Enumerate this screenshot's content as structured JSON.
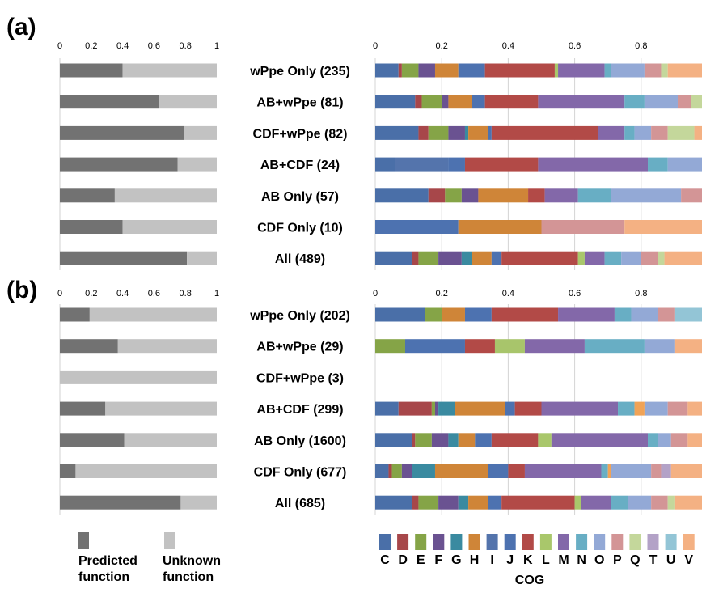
{
  "chart_data": [
    {
      "panel": "(a)",
      "left": {
        "type": "bar",
        "orientation": "horizontal",
        "stacked": true,
        "xlim": [
          0,
          1
        ],
        "ticks": [
          "0",
          "0.2",
          "0.4",
          "0.6",
          "0.8",
          "1"
        ],
        "series": [
          {
            "name": "Predicted function",
            "values": [
              0.4,
              0.63,
              0.79,
              0.75,
              0.35,
              0.4,
              0.81
            ]
          },
          {
            "name": "Unknown function",
            "values": [
              0.6,
              0.37,
              0.21,
              0.25,
              0.65,
              0.6,
              0.19
            ]
          }
        ]
      },
      "categories": [
        "wPpe Only (235)",
        "AB+wPpe (81)",
        "CDF+wPpe (82)",
        "AB+CDF (24)",
        "AB Only (57)",
        "CDF Only (10)",
        "All (489)"
      ],
      "right": {
        "type": "bar",
        "orientation": "horizontal",
        "stacked": true,
        "xlim": [
          0,
          1
        ],
        "ticks": [
          "0",
          "0.2",
          "0.4",
          "0.6",
          "0.8"
        ],
        "rows": [
          [
            [
              "C",
              0.07
            ],
            [
              "D",
              0.01
            ],
            [
              "E",
              0.05
            ],
            [
              "F",
              0.05
            ],
            [
              "H",
              0.07
            ],
            [
              "J",
              0.08
            ],
            [
              "K",
              0.21
            ],
            [
              "L",
              0.01
            ],
            [
              "M",
              0.14
            ],
            [
              "N",
              0.02
            ],
            [
              "O",
              0.1
            ],
            [
              "P",
              0.05
            ],
            [
              "Q",
              0.02
            ],
            [
              "V",
              0.12
            ]
          ],
          [
            [
              "C",
              0.12
            ],
            [
              "D",
              0.02
            ],
            [
              "E",
              0.06
            ],
            [
              "F",
              0.02
            ],
            [
              "H",
              0.07
            ],
            [
              "J",
              0.04
            ],
            [
              "K",
              0.16
            ],
            [
              "M",
              0.26
            ],
            [
              "N",
              0.06
            ],
            [
              "O",
              0.1
            ],
            [
              "P",
              0.04
            ],
            [
              "Q",
              0.05
            ]
          ],
          [
            [
              "C",
              0.13
            ],
            [
              "D",
              0.03
            ],
            [
              "E",
              0.06
            ],
            [
              "F",
              0.05
            ],
            [
              "G",
              0.01
            ],
            [
              "H",
              0.06
            ],
            [
              "J",
              0.01
            ],
            [
              "K",
              0.32
            ],
            [
              "M",
              0.08
            ],
            [
              "N",
              0.03
            ],
            [
              "O",
              0.05
            ],
            [
              "P",
              0.05
            ],
            [
              "Q",
              0.08
            ],
            [
              "V",
              0.04
            ]
          ],
          [
            [
              "C",
              0.06
            ],
            [
              "I",
              0.16
            ],
            [
              "J",
              0.05
            ],
            [
              "K",
              0.22
            ],
            [
              "M",
              0.33
            ],
            [
              "N",
              0.06
            ],
            [
              "O",
              0.12
            ]
          ],
          [
            [
              "C",
              0.16
            ],
            [
              "D",
              0.05
            ],
            [
              "E",
              0.05
            ],
            [
              "F",
              0.05
            ],
            [
              "H",
              0.15
            ],
            [
              "K",
              0.05
            ],
            [
              "M",
              0.1
            ],
            [
              "N",
              0.1
            ],
            [
              "O",
              0.21
            ],
            [
              "P",
              0.08
            ]
          ],
          [
            [
              "J",
              0.25
            ],
            [
              "H",
              0.25
            ],
            [
              "P",
              0.25
            ],
            [
              "V",
              0.25
            ]
          ],
          [
            [
              "C",
              0.11
            ],
            [
              "D",
              0.02
            ],
            [
              "E",
              0.06
            ],
            [
              "F",
              0.07
            ],
            [
              "G",
              0.03
            ],
            [
              "H",
              0.06
            ],
            [
              "J",
              0.03
            ],
            [
              "K",
              0.23
            ],
            [
              "L",
              0.02
            ],
            [
              "M",
              0.06
            ],
            [
              "N",
              0.05
            ],
            [
              "O",
              0.06
            ],
            [
              "P",
              0.05
            ],
            [
              "Q",
              0.02
            ],
            [
              "V",
              0.13
            ]
          ]
        ]
      }
    },
    {
      "panel": "(b)",
      "left": {
        "type": "bar",
        "orientation": "horizontal",
        "stacked": true,
        "xlim": [
          0,
          1
        ],
        "ticks": [
          "0",
          "0.2",
          "0.4",
          "0.6",
          "0.8",
          "1"
        ],
        "series": [
          {
            "name": "Predicted function",
            "values": [
              0.19,
              0.37,
              0.0,
              0.29,
              0.41,
              0.1,
              0.77
            ]
          },
          {
            "name": "Unknown function",
            "values": [
              0.81,
              0.63,
              1.0,
              0.71,
              0.59,
              0.9,
              0.23
            ]
          }
        ]
      },
      "categories": [
        "wPpe Only (202)",
        "AB+wPpe (29)",
        "CDF+wPpe (3)",
        "AB+CDF (299)",
        "AB Only (1600)",
        "CDF Only (677)",
        "All (685)"
      ],
      "right": {
        "type": "bar",
        "orientation": "horizontal",
        "stacked": true,
        "xlim": [
          0,
          1
        ],
        "ticks": [
          "0",
          "0.2",
          "0.4",
          "0.6",
          "0.8"
        ],
        "rows": [
          [
            [
              "C",
              0.15
            ],
            [
              "E",
              0.05
            ],
            [
              "H",
              0.07
            ],
            [
              "J",
              0.08
            ],
            [
              "K",
              0.2
            ],
            [
              "M",
              0.17
            ],
            [
              "N",
              0.05
            ],
            [
              "O",
              0.08
            ],
            [
              "P",
              0.05
            ],
            [
              "U",
              0.1
            ]
          ],
          [
            [
              "E",
              0.09
            ],
            [
              "J",
              0.18
            ],
            [
              "K",
              0.09
            ],
            [
              "K2",
              0.09
            ],
            [
              "M",
              0.18
            ],
            [
              "N",
              0.18
            ],
            [
              "O",
              0.09
            ],
            [
              "V",
              0.1
            ]
          ],
          [],
          [
            [
              "C",
              0.07
            ],
            [
              "D",
              0.1
            ],
            [
              "E",
              0.01
            ],
            [
              "F",
              0.01
            ],
            [
              "G",
              0.05
            ],
            [
              "H",
              0.15
            ],
            [
              "J",
              0.03
            ],
            [
              "K",
              0.08
            ],
            [
              "M",
              0.23
            ],
            [
              "N",
              0.05
            ],
            [
              "H2",
              0.03
            ],
            [
              "O",
              0.07
            ],
            [
              "P",
              0.06
            ],
            [
              "V",
              0.06
            ]
          ],
          [
            [
              "C",
              0.11
            ],
            [
              "D",
              0.01
            ],
            [
              "E",
              0.05
            ],
            [
              "F",
              0.05
            ],
            [
              "G",
              0.03
            ],
            [
              "H",
              0.05
            ],
            [
              "J",
              0.05
            ],
            [
              "K",
              0.14
            ],
            [
              "L",
              0.04
            ],
            [
              "M",
              0.29
            ],
            [
              "N",
              0.03
            ],
            [
              "O",
              0.04
            ],
            [
              "P",
              0.05
            ],
            [
              "V",
              0.06
            ]
          ],
          [
            [
              "C",
              0.04
            ],
            [
              "D",
              0.01
            ],
            [
              "E",
              0.03
            ],
            [
              "F",
              0.03
            ],
            [
              "G",
              0.07
            ],
            [
              "H",
              0.16
            ],
            [
              "J",
              0.06
            ],
            [
              "K",
              0.05
            ],
            [
              "M",
              0.23
            ],
            [
              "N",
              0.02
            ],
            [
              "H2",
              0.01
            ],
            [
              "O",
              0.12
            ],
            [
              "P",
              0.03
            ],
            [
              "T",
              0.03
            ],
            [
              "V",
              0.11
            ]
          ],
          [
            [
              "C",
              0.11
            ],
            [
              "D",
              0.02
            ],
            [
              "E",
              0.06
            ],
            [
              "F",
              0.06
            ],
            [
              "G",
              0.03
            ],
            [
              "H",
              0.06
            ],
            [
              "J",
              0.04
            ],
            [
              "K",
              0.22
            ],
            [
              "L",
              0.02
            ],
            [
              "M",
              0.09
            ],
            [
              "N",
              0.05
            ],
            [
              "O",
              0.07
            ],
            [
              "P",
              0.05
            ],
            [
              "Q",
              0.02
            ],
            [
              "V",
              0.1
            ]
          ]
        ]
      }
    }
  ],
  "legend": {
    "predicted": [
      "Predicted",
      "function"
    ],
    "unknown": [
      "Unknown",
      "function"
    ],
    "cog_title": "COG",
    "cog_letters": [
      "C",
      "D",
      "E",
      "F",
      "G",
      "H",
      "I",
      "J",
      "K",
      "L",
      "M",
      "N",
      "O",
      "P",
      "Q",
      "T",
      "U",
      "V"
    ]
  },
  "colors": {
    "predicted": "#727272",
    "unknown": "#c2c2c2",
    "C": "#4a6fa8",
    "D": "#a7474a",
    "E": "#85a447",
    "F": "#6a5291",
    "G": "#3a8aa0",
    "H": "#cf8538",
    "I": "#5474ac",
    "J": "#4d72b0",
    "K": "#b24a47",
    "K2": "#a8c56b",
    "L": "#a9c76b",
    "M": "#8368a9",
    "N": "#68aec4",
    "H2": "#f0a357",
    "O": "#93a9d6",
    "P": "#d39596",
    "Q": "#c4d79b",
    "T": "#b3a2c7",
    "U": "#93c5d6",
    "V": "#f4b183"
  }
}
